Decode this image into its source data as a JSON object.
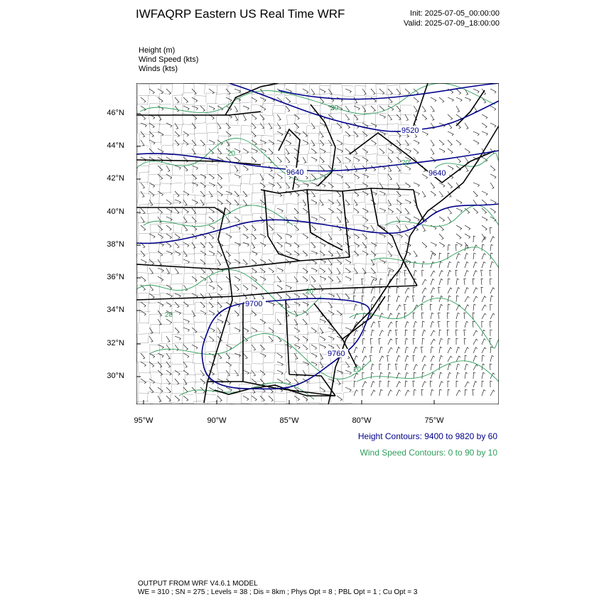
{
  "header": {
    "title": "IWFAQRP Eastern US Real Time WRF",
    "init": "Init: 2025-07-05_00:00:00",
    "valid": "Valid: 2025-07-09_18:00:00"
  },
  "variables": [
    "Height   (m)",
    "Wind Speed   (kts)",
    "Winds   (kts)"
  ],
  "map": {
    "lat_labels": [
      "46°N",
      "44°N",
      "42°N",
      "40°N",
      "38°N",
      "36°N",
      "34°N",
      "32°N",
      "30°N"
    ],
    "lon_labels": [
      "95°W",
      "90°W",
      "85°W",
      "80°W",
      "75°W"
    ],
    "height_contour_labels": [
      "9520",
      "9640",
      "9640",
      "9700",
      "9760"
    ],
    "wind_contour_labels": [
      "20",
      "20",
      "20",
      "20",
      "20",
      "20"
    ],
    "colors": {
      "height": "#00008b",
      "wind": "#2e9e5b",
      "border": "#000000"
    }
  },
  "legend": {
    "height": "Height Contours: 9400 to 9820 by 60",
    "wind": "Wind Speed Contours: 0 to 90 by 10"
  },
  "footer": {
    "line1": "OUTPUT FROM WRF V4.6.1 MODEL",
    "line2": "WE = 310 ; SN = 275 ; Levels = 38 ; Dis = 8km ; Phys Opt = 8 ; PBL Opt = 1 ; Cu Opt = 3"
  }
}
